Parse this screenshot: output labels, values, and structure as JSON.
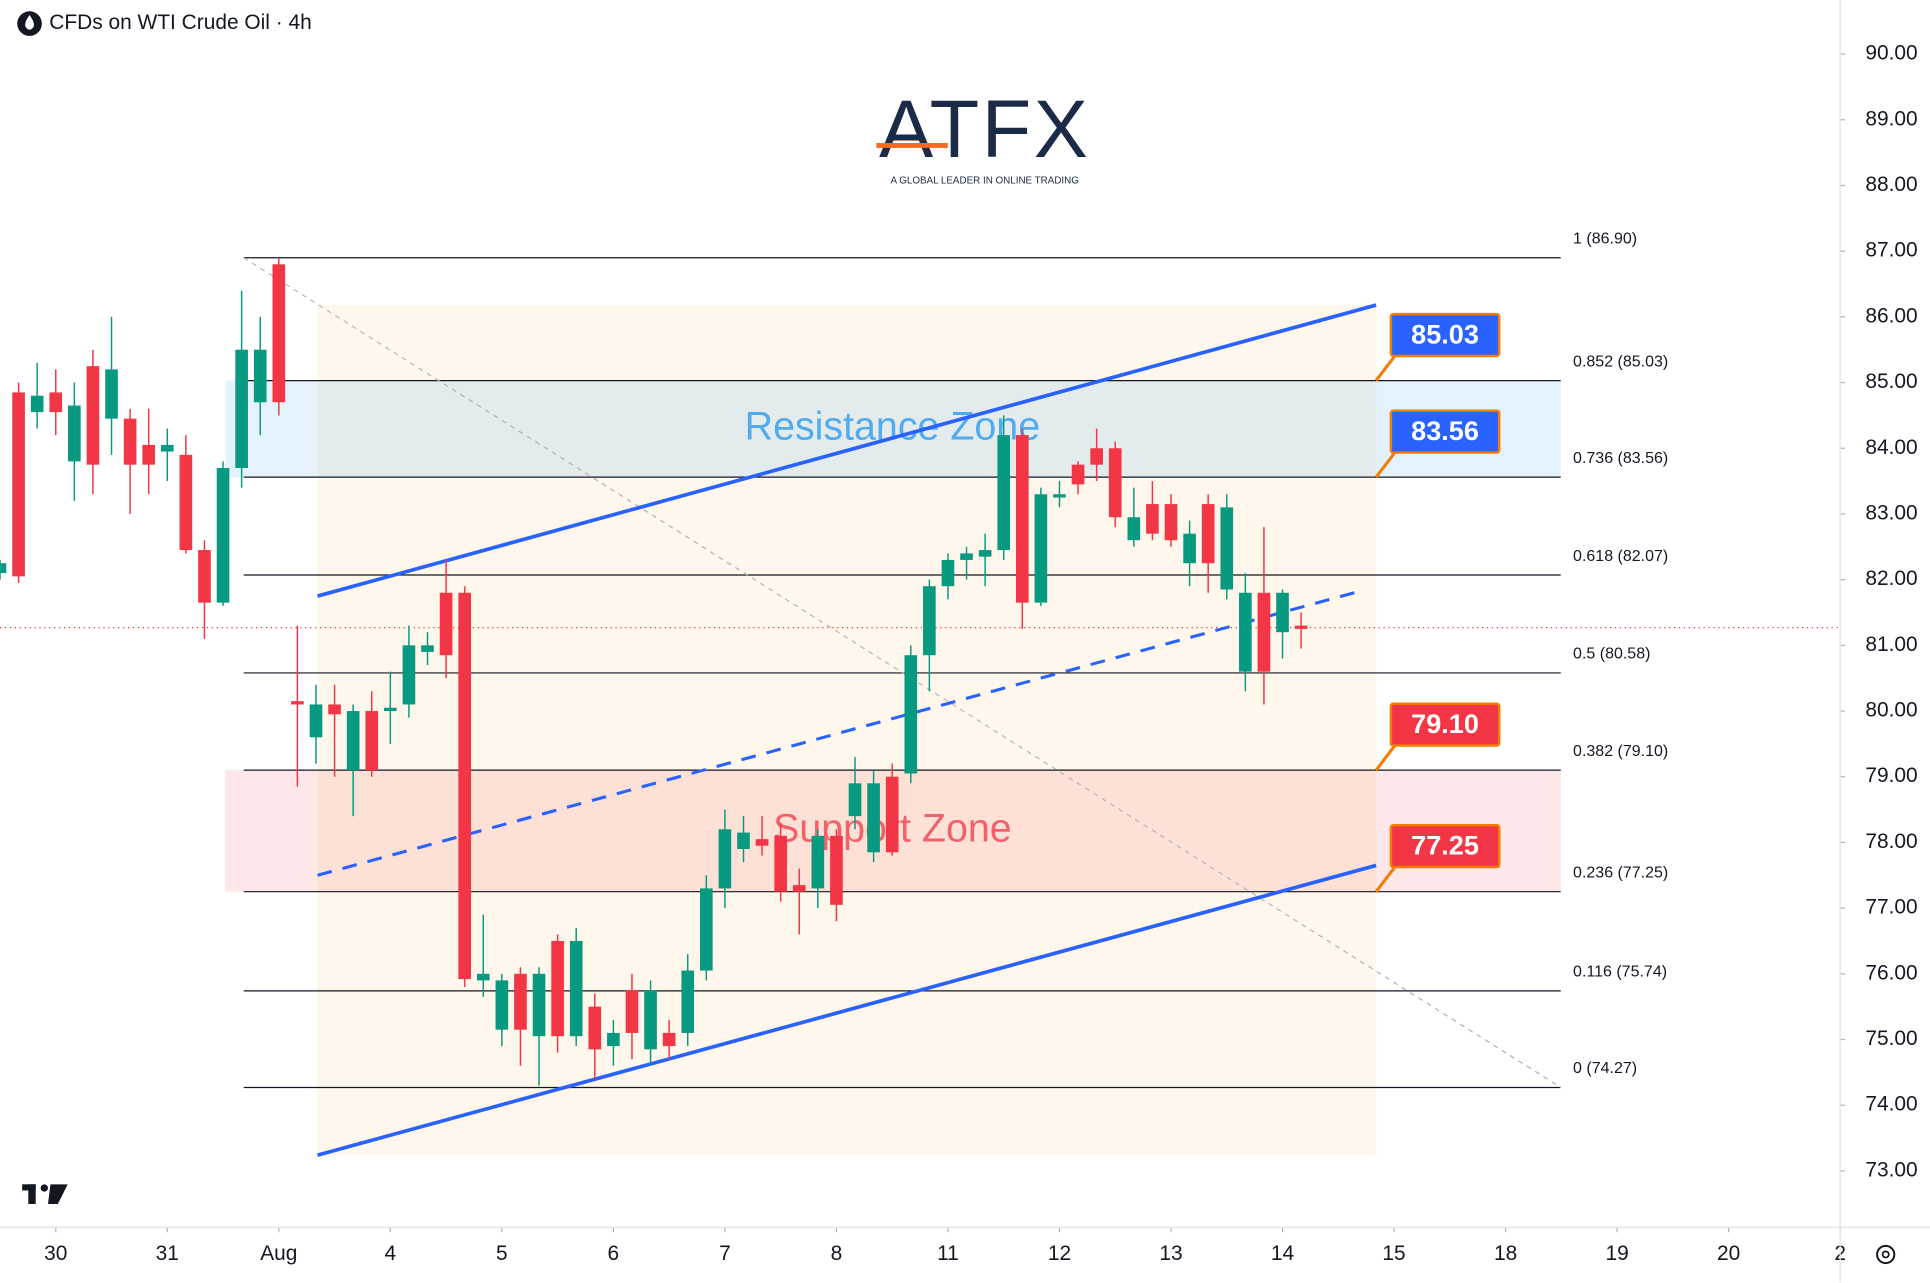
{
  "chart_data": {
    "type": "candlestick",
    "title": "CFDs on WTI Crude Oil · 4h",
    "logo": {
      "name": "ATFX",
      "tagline": "A GLOBAL LEADER IN ONLINE TRADING"
    },
    "x": [
      -3,
      -2,
      -1,
      0,
      1,
      2,
      3,
      4,
      5,
      6,
      7,
      8,
      9,
      10,
      11,
      12,
      13,
      14,
      15,
      16,
      17,
      18,
      19,
      20,
      21,
      22,
      23,
      24,
      25,
      26,
      27,
      28,
      29,
      30,
      31,
      32,
      33,
      34,
      35,
      36,
      37,
      38,
      39,
      40,
      41,
      42,
      43,
      44,
      45,
      46,
      47,
      48,
      49,
      50,
      51,
      52,
      53,
      54,
      55,
      56,
      57,
      58,
      59,
      60,
      61,
      62,
      63,
      64,
      65,
      66,
      67
    ],
    "open": [
      82.1,
      84.85,
      84.55,
      84.85,
      83.8,
      85.25,
      84.45,
      84.45,
      84.05,
      83.95,
      83.9,
      82.45,
      81.65,
      83.7,
      84.7,
      86.8,
      80.15,
      79.6,
      80.1,
      79.1,
      80.0,
      80.0,
      80.1,
      80.9,
      81.8,
      81.8,
      75.9,
      75.15,
      76.0,
      75.05,
      76.5,
      75.05,
      75.5,
      74.9,
      75.75,
      74.85,
      75.1,
      75.1,
      76.05,
      77.3,
      77.9,
      78.05,
      78.1,
      77.35,
      77.3,
      78.1,
      78.4,
      77.85,
      79.0,
      79.05,
      80.85,
      81.9,
      82.3,
      82.35,
      82.45,
      84.2,
      81.65,
      83.25,
      83.75,
      84.0,
      84.0,
      82.6,
      83.15,
      83.15,
      82.25,
      83.15,
      81.85,
      80.6,
      81.8,
      81.2,
      81.3
    ],
    "high": [
      82.3,
      85.0,
      85.3,
      85.2,
      85.0,
      85.5,
      86.0,
      84.6,
      84.6,
      84.3,
      84.2,
      82.6,
      83.8,
      86.4,
      86.0,
      86.9,
      81.3,
      80.4,
      80.4,
      80.1,
      80.3,
      80.6,
      81.3,
      81.2,
      82.3,
      81.9,
      76.9,
      76.0,
      76.1,
      76.1,
      76.6,
      76.7,
      75.7,
      75.3,
      76.0,
      75.9,
      75.3,
      76.3,
      77.5,
      78.5,
      78.4,
      78.4,
      78.3,
      77.6,
      78.2,
      78.2,
      79.3,
      79.1,
      79.2,
      81.0,
      82.0,
      82.4,
      82.5,
      82.7,
      84.5,
      84.3,
      83.4,
      83.5,
      83.8,
      84.3,
      84.1,
      83.4,
      83.5,
      83.3,
      82.9,
      83.3,
      83.3,
      82.1,
      82.8,
      81.85,
      81.5
    ],
    "low": [
      82.0,
      81.95,
      84.3,
      84.2,
      83.2,
      83.3,
      83.9,
      83.0,
      83.3,
      83.5,
      82.4,
      81.1,
      81.6,
      83.4,
      84.2,
      84.5,
      78.85,
      79.2,
      79.0,
      78.4,
      79.0,
      79.5,
      79.9,
      80.7,
      80.5,
      75.8,
      75.65,
      74.9,
      74.6,
      74.3,
      74.8,
      74.9,
      74.4,
      74.6,
      74.7,
      74.6,
      74.7,
      74.9,
      75.9,
      77.0,
      77.7,
      77.8,
      77.1,
      76.6,
      77.0,
      76.8,
      78.2,
      77.7,
      77.8,
      78.9,
      80.3,
      81.7,
      82.0,
      81.9,
      82.3,
      81.25,
      81.6,
      83.1,
      83.3,
      83.5,
      82.8,
      82.5,
      82.6,
      82.5,
      81.9,
      81.8,
      81.7,
      80.3,
      80.1,
      80.8,
      80.95
    ],
    "close": [
      82.25,
      82.05,
      84.8,
      84.55,
      84.65,
      83.75,
      85.2,
      83.75,
      83.75,
      84.05,
      82.45,
      81.65,
      83.7,
      85.5,
      85.5,
      84.7,
      80.1,
      80.1,
      79.95,
      80.0,
      79.1,
      80.05,
      81.0,
      81.0,
      80.85,
      75.92,
      76.0,
      75.9,
      75.15,
      76.0,
      75.05,
      76.5,
      74.85,
      75.1,
      75.1,
      75.75,
      74.9,
      76.05,
      77.3,
      78.2,
      78.15,
      77.95,
      77.25,
      77.25,
      78.1,
      77.05,
      78.9,
      78.9,
      77.85,
      80.85,
      81.9,
      82.3,
      82.4,
      82.45,
      84.2,
      81.65,
      83.3,
      83.3,
      83.45,
      83.75,
      82.95,
      82.95,
      82.7,
      82.6,
      82.7,
      82.25,
      83.1,
      81.8,
      80.6,
      81.8,
      81.25
    ],
    "up_color": "#089981",
    "down_color": "#f23645",
    "xlim": [
      -3,
      96
    ],
    "xticks": [
      {
        "value": 0,
        "label": "30"
      },
      {
        "value": 6,
        "label": "31"
      },
      {
        "value": 12,
        "label": "Aug"
      },
      {
        "value": 18,
        "label": "4"
      },
      {
        "value": 24,
        "label": "5"
      },
      {
        "value": 30,
        "label": "6"
      },
      {
        "value": 36,
        "label": "7"
      },
      {
        "value": 42,
        "label": "8"
      },
      {
        "value": 48,
        "label": "11"
      },
      {
        "value": 54,
        "label": "12"
      },
      {
        "value": 60,
        "label": "13"
      },
      {
        "value": 66,
        "label": "14"
      },
      {
        "value": 72,
        "label": "15"
      },
      {
        "value": 78,
        "label": "18"
      },
      {
        "value": 84,
        "label": "19"
      },
      {
        "value": 90,
        "label": "20"
      },
      {
        "value": 96,
        "label": "2"
      }
    ],
    "ylim": [
      72.14,
      90.82
    ],
    "yticks": [
      {
        "value": 73,
        "label": "73.00"
      },
      {
        "value": 74,
        "label": "74.00"
      },
      {
        "value": 75,
        "label": "75.00"
      },
      {
        "value": 76,
        "label": "76.00"
      },
      {
        "value": 77,
        "label": "77.00"
      },
      {
        "value": 78,
        "label": "78.00"
      },
      {
        "value": 79,
        "label": "79.00"
      },
      {
        "value": 80,
        "label": "80.00"
      },
      {
        "value": 81,
        "label": "81.00"
      },
      {
        "value": 82,
        "label": "82.00"
      },
      {
        "value": 83,
        "label": "83.00"
      },
      {
        "value": 84,
        "label": "84.00"
      },
      {
        "value": 85,
        "label": "85.00"
      },
      {
        "value": 86,
        "label": "86.00"
      },
      {
        "value": 87,
        "label": "87.00"
      },
      {
        "value": 88,
        "label": "88.00"
      },
      {
        "value": 89,
        "label": "89.00"
      },
      {
        "value": 90,
        "label": "90.00"
      }
    ],
    "last_price": 81.27,
    "fib_levels": [
      {
        "value": 86.9,
        "label": "1 (86.90)"
      },
      {
        "value": 85.03,
        "label": "0.852 (85.03)"
      },
      {
        "value": 83.56,
        "label": "0.736 (83.56)"
      },
      {
        "value": 82.07,
        "label": "0.618 (82.07)"
      },
      {
        "value": 80.58,
        "label": "0.5 (80.58)"
      },
      {
        "value": 79.1,
        "label": "0.382 (79.10)"
      },
      {
        "value": 77.25,
        "label": "0.236 (77.25)"
      },
      {
        "value": 75.74,
        "label": "0.116 (75.74)"
      },
      {
        "value": 74.27,
        "label": "0 (74.27)"
      }
    ],
    "zones": [
      {
        "name": "Resistance Zone",
        "high": 85.03,
        "low": 83.56,
        "color": "#2196f3"
      },
      {
        "name": "Support Zone",
        "high": 79.1,
        "low": 77.25,
        "color": "#f23645"
      }
    ],
    "callouts": [
      {
        "value": 85.03,
        "label": "85.03",
        "color": "#2962ff"
      },
      {
        "value": 83.56,
        "label": "83.56",
        "color": "#2962ff"
      },
      {
        "value": 79.1,
        "label": "79.10",
        "color": "#f23645"
      },
      {
        "value": 77.25,
        "label": "77.25",
        "color": "#f23645"
      }
    ],
    "channel": {
      "upper": [
        81.75,
        86.18
      ],
      "lower": [
        73.24,
        77.65
      ],
      "middle": [
        77.5,
        81.81
      ],
      "color": "#2962ff"
    }
  }
}
